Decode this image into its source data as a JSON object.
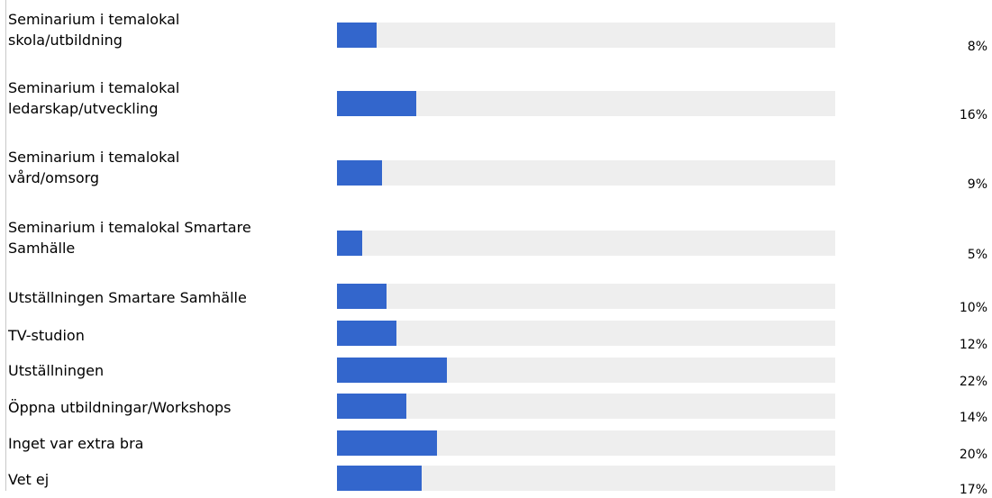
{
  "chart_data": {
    "type": "bar",
    "orientation": "horizontal",
    "title": "",
    "xlabel": "",
    "ylabel": "",
    "xlim": [
      0,
      100
    ],
    "grid": false,
    "legend": "none",
    "bar_color": "#3366cc",
    "track_color": "#eeeeee",
    "categories": [
      "Seminarium i temalokal\nskola/utbildning",
      "Seminarium i temalokal\nledarskap/utveckling",
      "Seminarium i temalokal\nvård/omsorg",
      "Seminarium i temalokal Smartare\nSamhälle",
      "Utställningen Smartare Samhälle",
      "TV-studion",
      "Utställningen",
      "Öppna utbildningar/Workshops",
      "Inget var extra bra",
      "Vet ej"
    ],
    "values": [
      8,
      16,
      9,
      5,
      10,
      12,
      22,
      14,
      20,
      17
    ],
    "value_labels": [
      "8%",
      "16%",
      "9%",
      "5%",
      "10%",
      "12%",
      "22%",
      "14%",
      "20%",
      "17%"
    ]
  }
}
